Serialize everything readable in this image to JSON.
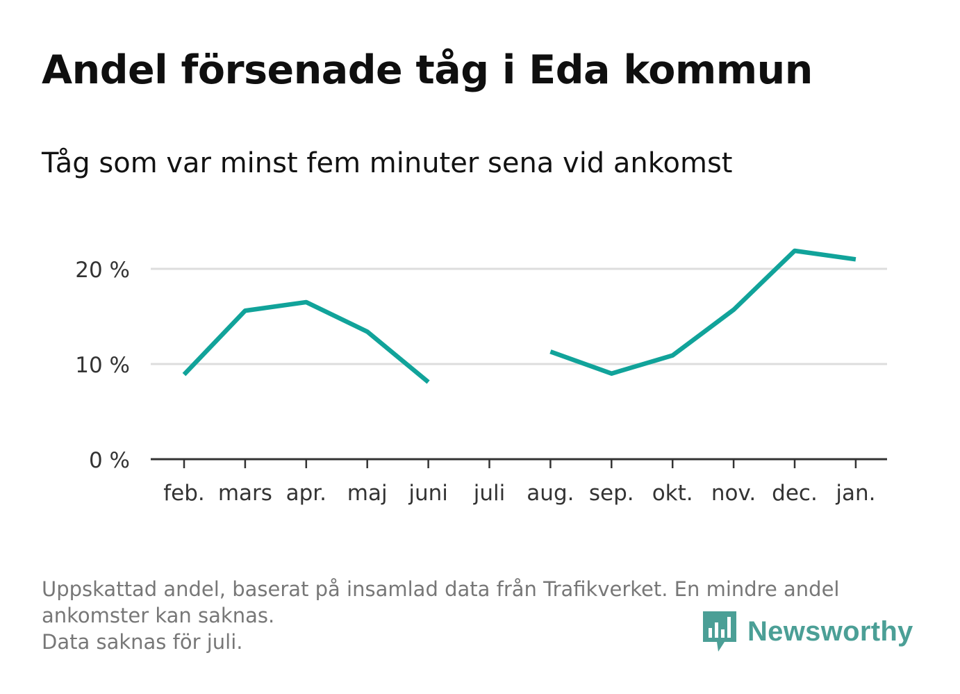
{
  "title": "Andel försenade tåg i Eda kommun",
  "subtitle": "Tåg som var minst fem minuter sena vid ankomst",
  "footer": {
    "lines": [
      "Uppskattad andel, baserat på insamlad data från Trafikverket. En mindre andel",
      "ankomster kan saknas.",
      "Data saknas för juli."
    ]
  },
  "brand": {
    "name": "Newsworthy",
    "color": "#4b9f96"
  },
  "colors": {
    "line": "#11a39a",
    "grid": "#dddddd",
    "axis": "#333333"
  },
  "chart_data": {
    "type": "line",
    "categories": [
      "feb.",
      "mars",
      "apr.",
      "maj",
      "juni",
      "juli",
      "aug.",
      "sep.",
      "okt.",
      "nov.",
      "dec.",
      "jan."
    ],
    "series": [
      {
        "values": [
          8.9,
          15.6,
          16.5,
          13.4,
          8.1,
          null,
          11.3,
          9.0,
          10.9,
          15.7,
          21.9,
          21.0
        ]
      }
    ],
    "y_ticks": [
      0,
      10,
      20
    ],
    "y_tick_labels": [
      "0 %",
      "10 %",
      "20 %"
    ],
    "ylim": [
      0,
      24
    ],
    "grid": true,
    "xlabel": "",
    "ylabel": ""
  }
}
